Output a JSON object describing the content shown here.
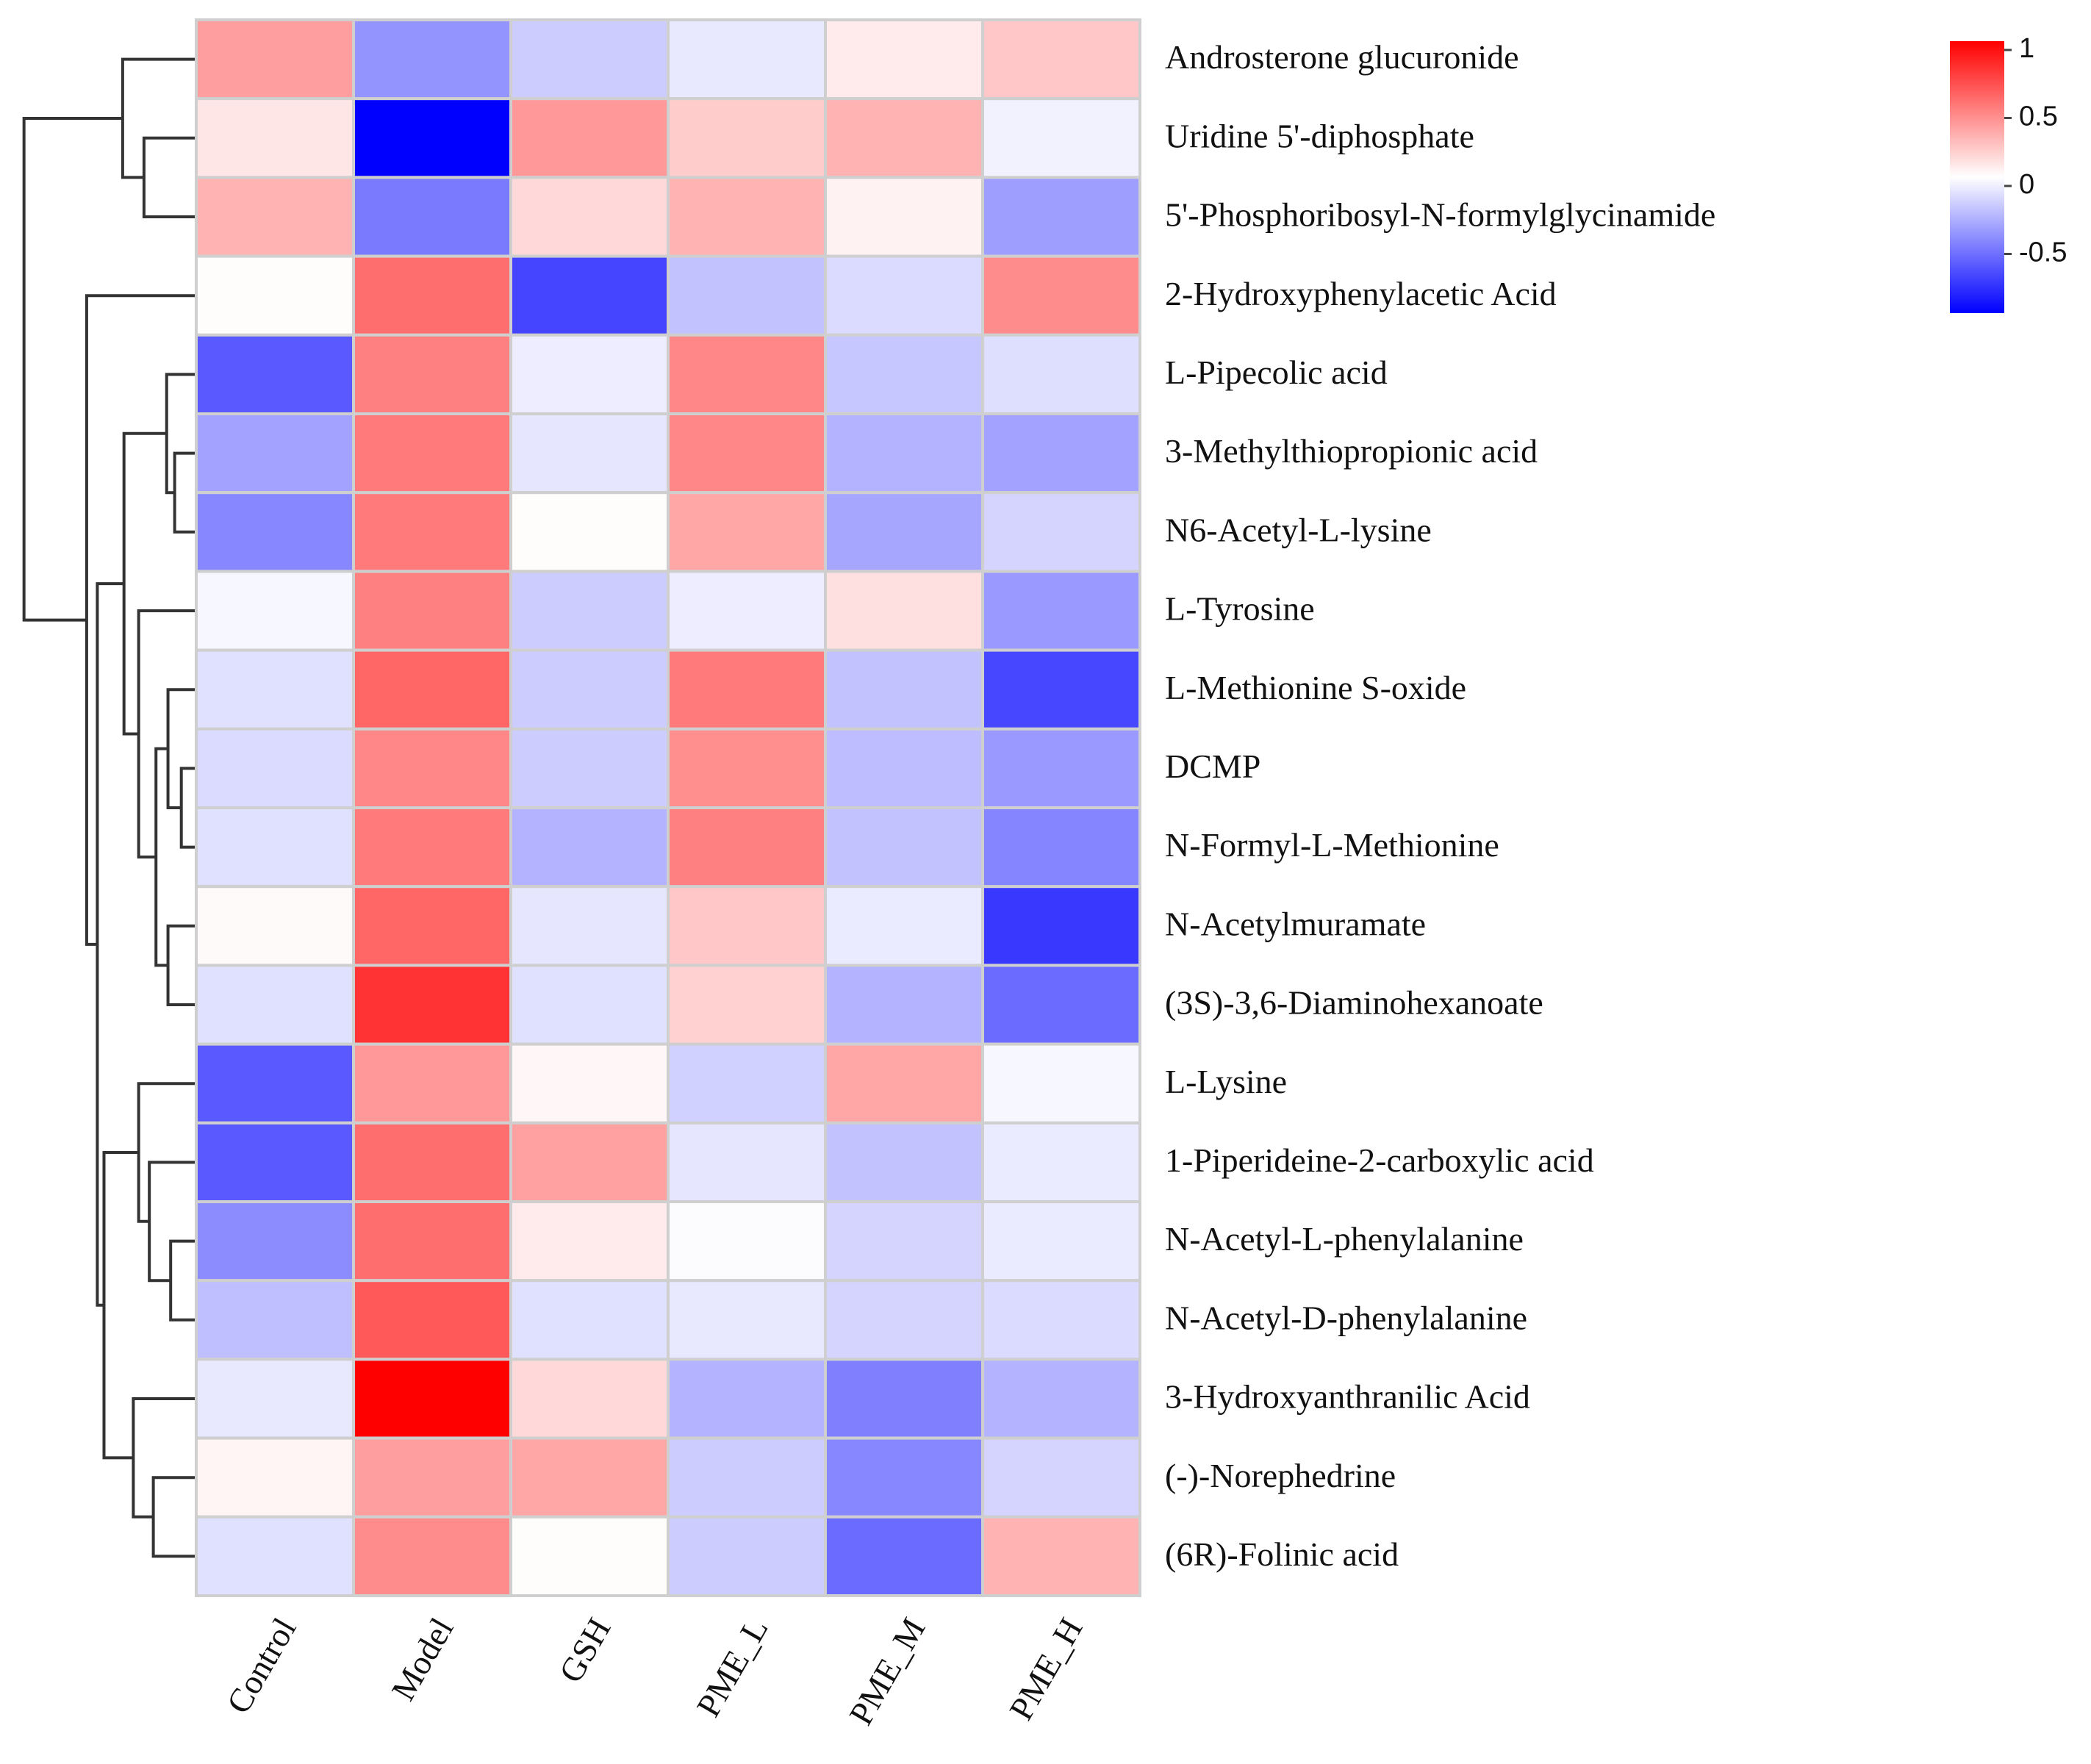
{
  "chart_data": {
    "type": "heatmap",
    "title": "",
    "columns": [
      "Control",
      "Model",
      "GSH",
      "PME_L",
      "PME_M",
      "PME_H"
    ],
    "rows": [
      "Androsterone glucuronide",
      "Uridine 5'-diphosphate",
      "5'-Phosphoribosyl-N-formylglycinamide",
      "2-Hydroxyphenylacetic Acid",
      "L-Pipecolic acid",
      "3-Methylthiopropionic acid",
      "N6-Acetyl-L-lysine",
      "L-Tyrosine",
      "L-Methionine S-oxide",
      "DCMP",
      "N-Formyl-L-Methionine",
      "N-Acetylmuramate",
      "(3S)-3,6-Diaminohexanoate",
      "L-Lysine",
      "1-Piperideine-2-carboxylic acid",
      "N-Acetyl-L-phenylalanine",
      "N-Acetyl-D-phenylalanine",
      "3-Hydroxyanthranilic Acid",
      "(-)-Norephedrine",
      "(6R)-Folinic acid"
    ],
    "values": [
      [
        0.38,
        -0.42,
        -0.2,
        -0.09,
        0.08,
        0.22
      ],
      [
        0.1,
        -1.0,
        0.4,
        0.2,
        0.3,
        -0.05
      ],
      [
        0.3,
        -0.52,
        0.15,
        0.3,
        0.05,
        -0.38
      ],
      [
        0.01,
        0.57,
        -0.73,
        -0.24,
        -0.14,
        0.45
      ],
      [
        -0.65,
        0.5,
        -0.07,
        0.47,
        -0.22,
        -0.13
      ],
      [
        -0.36,
        0.52,
        -0.1,
        0.47,
        -0.3,
        -0.36
      ],
      [
        -0.47,
        0.52,
        0.01,
        0.35,
        -0.35,
        -0.17
      ],
      [
        -0.03,
        0.5,
        -0.2,
        -0.07,
        0.12,
        -0.4
      ],
      [
        -0.12,
        0.6,
        -0.2,
        0.52,
        -0.24,
        -0.72
      ],
      [
        -0.14,
        0.47,
        -0.2,
        0.44,
        -0.26,
        -0.4
      ],
      [
        -0.12,
        0.52,
        -0.3,
        0.5,
        -0.24,
        -0.48
      ],
      [
        0.02,
        0.6,
        -0.1,
        0.22,
        -0.08,
        -0.78
      ],
      [
        -0.12,
        0.8,
        -0.12,
        0.18,
        -0.3,
        -0.58
      ],
      [
        -0.65,
        0.4,
        0.03,
        -0.18,
        0.35,
        -0.03
      ],
      [
        -0.65,
        0.57,
        0.37,
        -0.1,
        -0.24,
        -0.08
      ],
      [
        -0.45,
        0.57,
        0.08,
        -0.01,
        -0.17,
        -0.08
      ],
      [
        -0.25,
        0.65,
        -0.12,
        -0.09,
        -0.17,
        -0.14
      ],
      [
        -0.09,
        1.0,
        0.15,
        -0.3,
        -0.5,
        -0.3
      ],
      [
        0.04,
        0.38,
        0.35,
        -0.2,
        -0.47,
        -0.17
      ],
      [
        -0.12,
        0.45,
        0.01,
        -0.2,
        -0.58,
        0.3
      ]
    ],
    "color_scale": {
      "min": -1,
      "max": 1,
      "low_color": "#0000ff",
      "mid_color": "#ffffff",
      "high_color": "#ff0000",
      "ticks": [
        "1",
        "0.5",
        "0",
        "-0.5"
      ],
      "tick_values": [
        1,
        0.5,
        0,
        -0.5
      ]
    },
    "legend_position": "top-right",
    "row_dendrogram": true
  }
}
